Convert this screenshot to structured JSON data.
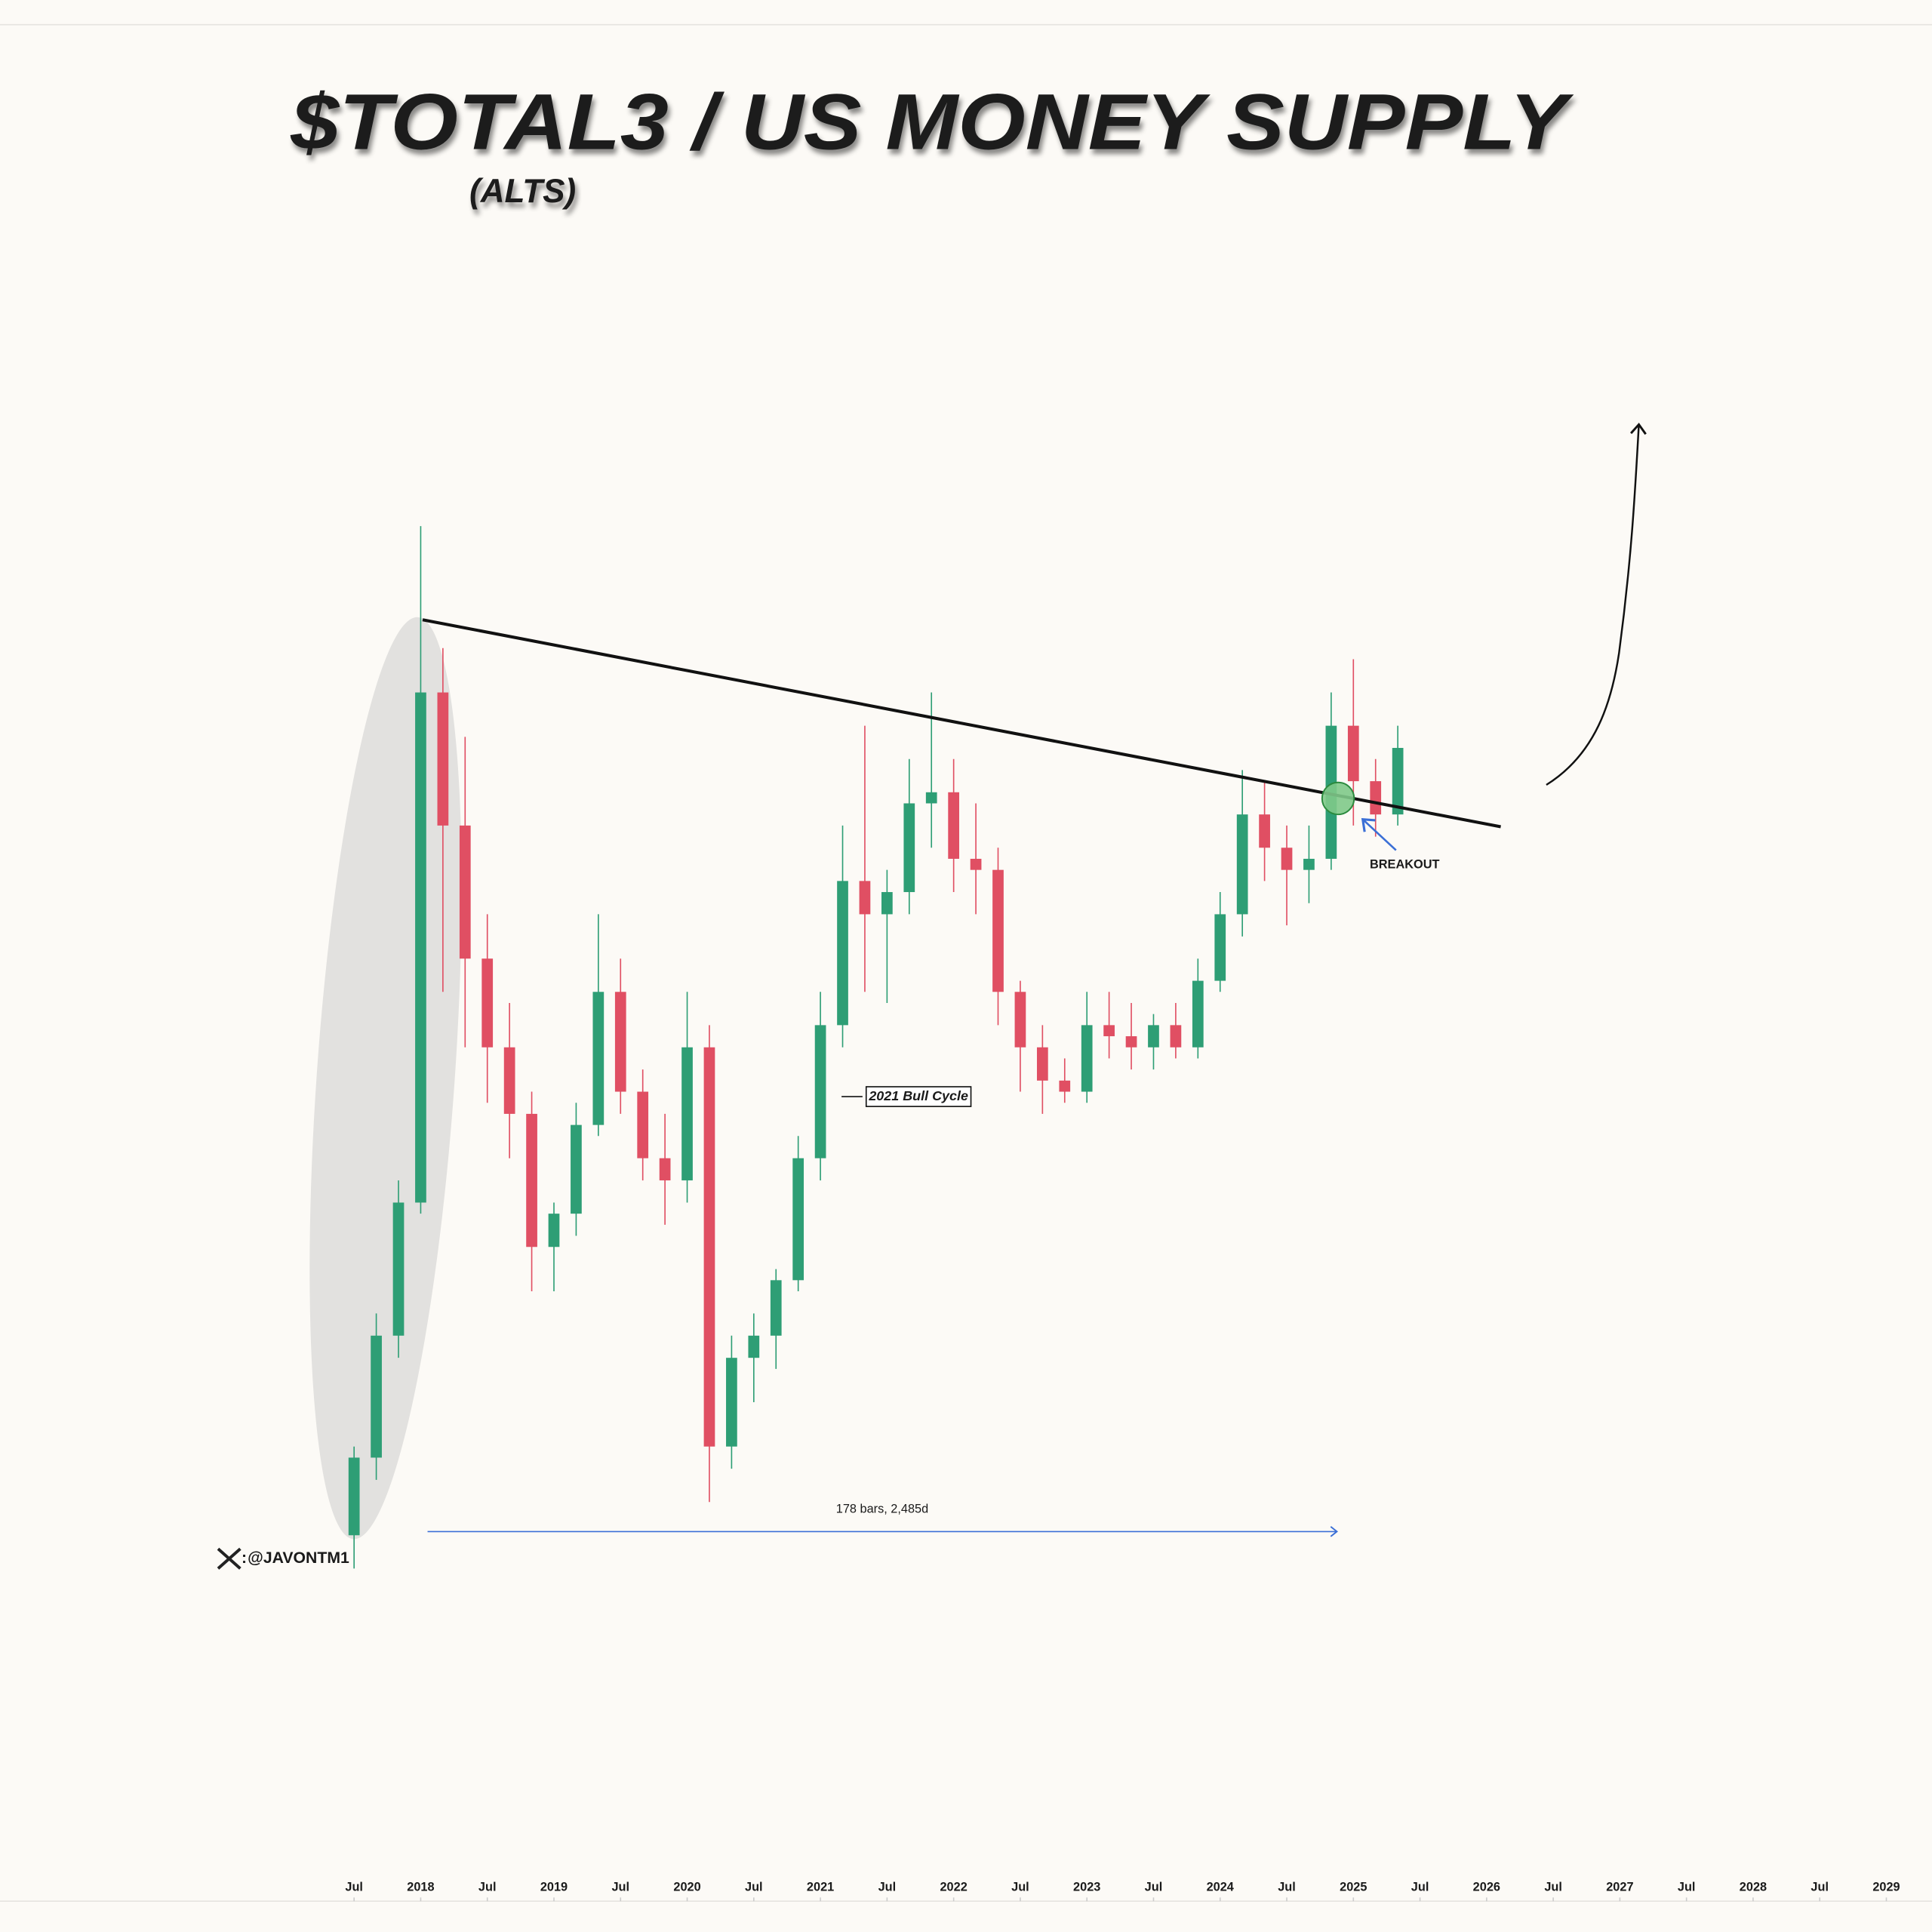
{
  "chart_data": {
    "type": "candlestick",
    "title": "$TOTAL3 / US MONEY SUPPLY",
    "subtitle": "(ALTS)",
    "annotations": {
      "bull_cycle": "2021 Bull Cycle",
      "breakout": "BREAKOUT",
      "measure": "178 bars, 2,485d",
      "watermark": "@JAVONTM1"
    },
    "up_color": "#2e9e75",
    "down_color": "#e04f63",
    "x": [
      "2017-07",
      "2017-09",
      "2017-11",
      "2018-01",
      "2018-03",
      "2018-05",
      "2018-07",
      "2018-09",
      "2018-11",
      "2019-01",
      "2019-03",
      "2019-05",
      "2019-07",
      "2019-09",
      "2019-11",
      "2020-01",
      "2020-03",
      "2020-05",
      "2020-07",
      "2020-09",
      "2020-11",
      "2021-01",
      "2021-03",
      "2021-05",
      "2021-07",
      "2021-09",
      "2021-11",
      "2022-01",
      "2022-03",
      "2022-05",
      "2022-07",
      "2022-09",
      "2022-11",
      "2023-01",
      "2023-03",
      "2023-05",
      "2023-07",
      "2023-09",
      "2023-11",
      "2024-01",
      "2024-03",
      "2024-05",
      "2024-07",
      "2024-09",
      "2024-11",
      "2025-01",
      "2025-03",
      "2025-05"
    ],
    "open": [
      6,
      13,
      24,
      36,
      82,
      70,
      58,
      50,
      44,
      32,
      35,
      43,
      55,
      46,
      40,
      38,
      50,
      14,
      22,
      24,
      29,
      40,
      52,
      65,
      62,
      64,
      72,
      73,
      67,
      66,
      55,
      50,
      47,
      46,
      52,
      51,
      50,
      52,
      50,
      56,
      62,
      71,
      68,
      66,
      67,
      79,
      74,
      71
    ],
    "high": [
      14,
      26,
      38,
      97,
      86,
      78,
      62,
      54,
      46,
      36,
      45,
      62,
      58,
      48,
      44,
      55,
      52,
      24,
      26,
      30,
      42,
      55,
      70,
      79,
      66,
      76,
      82,
      76,
      72,
      68,
      56,
      52,
      49,
      55,
      55,
      54,
      53,
      54,
      58,
      64,
      75,
      74,
      70,
      70,
      82,
      85,
      76,
      79
    ],
    "low": [
      3,
      11,
      22,
      35,
      55,
      50,
      45,
      40,
      28,
      28,
      33,
      42,
      44,
      38,
      34,
      36,
      9,
      12,
      18,
      21,
      28,
      38,
      50,
      55,
      54,
      62,
      68,
      64,
      62,
      52,
      46,
      44,
      45,
      45,
      49,
      48,
      48,
      49,
      49,
      55,
      60,
      65,
      61,
      63,
      66,
      70,
      69,
      70
    ],
    "close": [
      13,
      24,
      36,
      82,
      70,
      58,
      50,
      44,
      32,
      35,
      43,
      55,
      46,
      40,
      38,
      50,
      14,
      22,
      24,
      29,
      40,
      52,
      65,
      62,
      64,
      72,
      73,
      67,
      66,
      55,
      50,
      47,
      46,
      52,
      51,
      50,
      52,
      50,
      56,
      62,
      71,
      68,
      66,
      67,
      79,
      74,
      71,
      77
    ],
    "ylim": [
      0,
      100
    ],
    "xlim": [
      "2014-11",
      "2029-06"
    ],
    "xticks": [
      {
        "value": "2017-07",
        "label": "Jul"
      },
      {
        "value": "2018-01",
        "label": "2018"
      },
      {
        "value": "2018-07",
        "label": "Jul"
      },
      {
        "value": "2019-01",
        "label": "2019"
      },
      {
        "value": "2019-07",
        "label": "Jul"
      },
      {
        "value": "2020-01",
        "label": "2020"
      },
      {
        "value": "2020-07",
        "label": "Jul"
      },
      {
        "value": "2021-01",
        "label": "2021"
      },
      {
        "value": "2021-07",
        "label": "Jul"
      },
      {
        "value": "2022-01",
        "label": "2022"
      },
      {
        "value": "2022-07",
        "label": "Jul"
      },
      {
        "value": "2023-01",
        "label": "2023"
      },
      {
        "value": "2023-07",
        "label": "Jul"
      },
      {
        "value": "2024-01",
        "label": "2024"
      },
      {
        "value": "2024-07",
        "label": "Jul"
      },
      {
        "value": "2025-01",
        "label": "2025"
      },
      {
        "value": "2025-07",
        "label": "Jul"
      },
      {
        "value": "2026-01",
        "label": "2026"
      },
      {
        "value": "2026-07",
        "label": "Jul"
      },
      {
        "value": "2027-01",
        "label": "2027"
      },
      {
        "value": "2027-07",
        "label": "Jul"
      },
      {
        "value": "2028-01",
        "label": "2028"
      },
      {
        "value": "2028-07",
        "label": "Jul"
      },
      {
        "value": "2029-01",
        "label": "2029"
      }
    ]
  }
}
